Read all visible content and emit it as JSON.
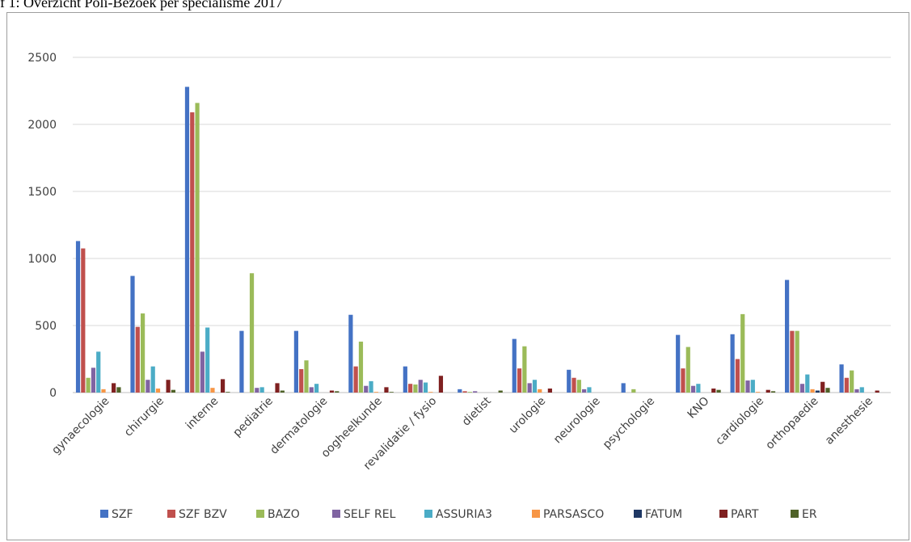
{
  "caption": "f 1: Overzicht Poli-Bezoek per specialisme 2017",
  "chart_data": {
    "type": "bar",
    "title": "",
    "xlabel": "",
    "ylabel": "",
    "ylim": [
      0,
      2500
    ],
    "yticks": [
      0,
      500,
      1000,
      1500,
      2000,
      2500
    ],
    "grid": true,
    "legend_position": "bottom",
    "categories": [
      "gynaecologie",
      "chirurgie",
      "interne",
      "pediatrie",
      "dermatologie",
      "oogheelkunde",
      "revalidatie / fysio",
      "dietist",
      "urologie",
      "neurologie",
      "psychologie",
      "KNO",
      "cardiologie",
      "orthopaedie",
      "anesthesie"
    ],
    "series": [
      {
        "name": "SZF",
        "color": "#4472C4",
        "values": [
          1130,
          870,
          2280,
          460,
          460,
          580,
          195,
          25,
          400,
          170,
          70,
          430,
          435,
          840,
          210
        ]
      },
      {
        "name": "SZF BZV",
        "color": "#C0504D",
        "values": [
          1075,
          490,
          2090,
          0,
          175,
          195,
          65,
          10,
          180,
          110,
          0,
          180,
          250,
          460,
          110
        ]
      },
      {
        "name": "BAZO",
        "color": "#9BBB59",
        "values": [
          110,
          590,
          2160,
          890,
          240,
          380,
          60,
          5,
          345,
          95,
          25,
          340,
          585,
          460,
          165
        ]
      },
      {
        "name": "SELF REL",
        "color": "#8064A2",
        "values": [
          185,
          95,
          305,
          35,
          40,
          50,
          95,
          10,
          70,
          25,
          0,
          50,
          90,
          65,
          25
        ]
      },
      {
        "name": "ASSURIA3",
        "color": "#4BACC6",
        "values": [
          305,
          195,
          485,
          40,
          65,
          85,
          75,
          0,
          95,
          40,
          0,
          65,
          95,
          135,
          40
        ]
      },
      {
        "name": "PARSASCO",
        "color": "#F79646",
        "values": [
          25,
          30,
          35,
          0,
          0,
          5,
          5,
          0,
          25,
          0,
          0,
          0,
          5,
          25,
          0
        ]
      },
      {
        "name": "FATUM",
        "color": "#1F3864",
        "values": [
          0,
          0,
          0,
          0,
          0,
          0,
          0,
          0,
          0,
          0,
          0,
          0,
          0,
          15,
          0
        ]
      },
      {
        "name": "PART",
        "color": "#7F2020",
        "values": [
          70,
          95,
          100,
          70,
          15,
          40,
          125,
          0,
          30,
          0,
          0,
          30,
          20,
          80,
          15
        ]
      },
      {
        "name": "ER",
        "color": "#4F6228",
        "values": [
          40,
          20,
          5,
          15,
          10,
          5,
          0,
          15,
          0,
          0,
          0,
          20,
          10,
          35,
          0
        ]
      }
    ]
  }
}
